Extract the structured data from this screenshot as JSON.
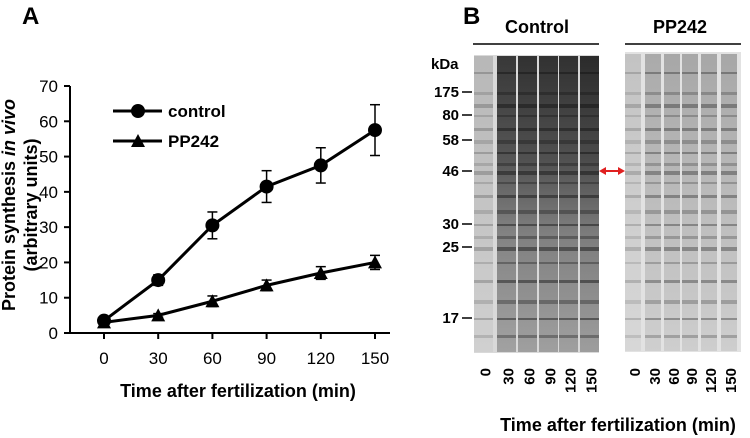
{
  "panel_a": {
    "letter": "A"
  },
  "panel_b": {
    "letter": "B"
  },
  "chart_data": [
    {
      "type": "line",
      "panel": "A",
      "title": "",
      "xlabel": "Time after fertilization (min)",
      "ylabel_line1": "Protein synthesis",
      "ylabel_italic": "in vivo",
      "ylabel_line2": "(arbitrary units)",
      "x": [
        0,
        30,
        60,
        90,
        120,
        150
      ],
      "xticks": [
        "0",
        "30",
        "60",
        "90",
        "120",
        "150"
      ],
      "ylim": [
        0,
        70
      ],
      "yticks": [
        "0",
        "10",
        "20",
        "30",
        "40",
        "50",
        "60",
        "70"
      ],
      "legend_position": "top-left",
      "grid": false,
      "series": [
        {
          "name": "control",
          "marker": "circle",
          "color": "#000000",
          "values": [
            3.5,
            15,
            30.5,
            41.5,
            47.5,
            57.5
          ],
          "error": [
            1,
            1.5,
            3.8,
            4.5,
            5,
            7.2
          ]
        },
        {
          "name": "PP242",
          "marker": "triangle",
          "color": "#000000",
          "values": [
            3,
            5,
            9,
            13.5,
            17,
            20
          ],
          "error": [
            0.4,
            0.5,
            1.5,
            1.5,
            1.8,
            2
          ]
        }
      ]
    },
    {
      "type": "gel",
      "panel": "B",
      "unit_label": "kDa",
      "markers_kda": [
        "175",
        "80",
        "58",
        "46",
        "30",
        "25",
        "17"
      ],
      "groups": [
        {
          "name": "Control",
          "lanes": [
            "0",
            "30",
            "60",
            "90",
            "120",
            "150"
          ]
        },
        {
          "name": "PP242",
          "lanes": [
            "0",
            "30",
            "60",
            "90",
            "120",
            "150"
          ]
        }
      ],
      "xlabel": "Time after fertilization (min)",
      "arrow_color": "#e02020",
      "arrow_marker_kda": "46"
    }
  ]
}
